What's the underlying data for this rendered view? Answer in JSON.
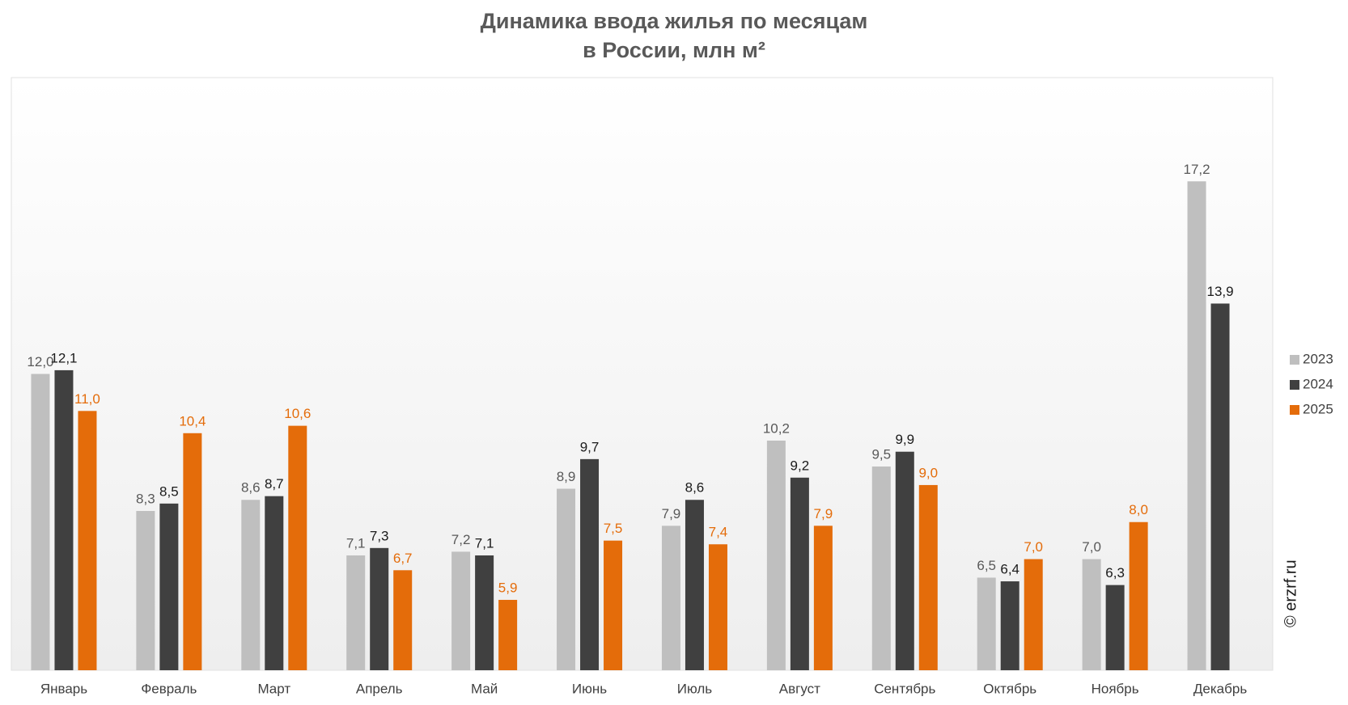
{
  "chart_data": {
    "type": "bar",
    "title": [
      "Динамика ввода жилья по месяцам",
      "в России, млн м²"
    ],
    "categories": [
      "Январь",
      "Февраль",
      "Март",
      "Апрель",
      "Май",
      "Июнь",
      "Июль",
      "Август",
      "Сентябрь",
      "Октябрь",
      "Ноябрь",
      "Декабрь"
    ],
    "series": [
      {
        "name": "2023",
        "color": "#bfbfbf",
        "label_color": "#595959",
        "values": [
          12.0,
          8.3,
          8.6,
          7.1,
          7.2,
          8.9,
          7.9,
          10.2,
          9.5,
          6.5,
          7.0,
          17.2
        ],
        "value_labels": [
          "12,0",
          "8,3",
          "8,6",
          "7,1",
          "7,2",
          "8,9",
          "7,9",
          "10,2",
          "9,5",
          "6,5",
          "7,0",
          "17,2"
        ]
      },
      {
        "name": "2024",
        "color": "#404040",
        "label_color": "#1a1a1a",
        "values": [
          12.1,
          8.5,
          8.7,
          7.3,
          7.1,
          9.7,
          8.6,
          9.2,
          9.9,
          6.4,
          6.3,
          13.9
        ],
        "value_labels": [
          "12,1",
          "8,5",
          "8,7",
          "7,3",
          "7,1",
          "9,7",
          "8,6",
          "9,2",
          "9,9",
          "6,4",
          "6,3",
          "13,9"
        ]
      },
      {
        "name": "2025",
        "color": "#e46c0a",
        "label_color": "#e46c0a",
        "values": [
          11.0,
          10.4,
          10.6,
          6.7,
          5.9,
          7.5,
          7.4,
          7.9,
          9.0,
          7.0,
          8.0,
          null
        ],
        "value_labels": [
          "11,0",
          "10,4",
          "10,6",
          "6,7",
          "5,9",
          "7,5",
          "7,4",
          "7,9",
          "9,0",
          "7,0",
          "8,0",
          null
        ]
      }
    ],
    "ylim": [
      4,
      20
    ],
    "legend": "right",
    "source": "© erzrf.ru"
  }
}
